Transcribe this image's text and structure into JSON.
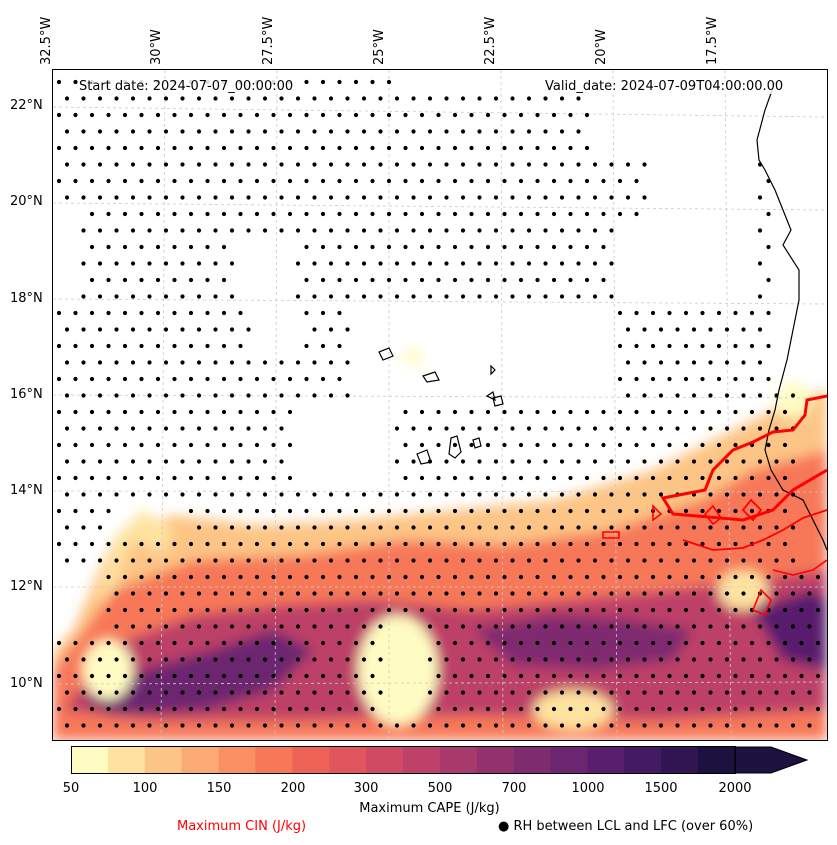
{
  "map": {
    "start_date": "Start date: 2024-07-07_00:00:00",
    "valid_date": "Valid_date: 2024-07-09T04:00:00.00",
    "longitude_labels": [
      "32.5°W",
      "30°W",
      "27.5°W",
      "25°W",
      "22.5°W",
      "20°W",
      "17.5°W"
    ],
    "latitude_labels": [
      "22°N",
      "20°N",
      "18°N",
      "16°N",
      "14°N",
      "12°N",
      "10°N"
    ]
  },
  "colorbar": {
    "title": "Maximum CAPE (J/kg)",
    "tick_labels": [
      "50",
      "100",
      "150",
      "200",
      "300",
      "500",
      "700",
      "1000",
      "1500",
      "2000"
    ],
    "colors": [
      "#fffcc3",
      "#fee3a0",
      "#fdc585",
      "#fcaa73",
      "#fa9063",
      "#f77858",
      "#ef6356",
      "#e1555c",
      "#d04a63",
      "#bd4168",
      "#a83a6c",
      "#93336e",
      "#7f2c6f",
      "#6c256f",
      "#581e6d",
      "#451a64",
      "#301552",
      "#1d1140"
    ]
  },
  "legend": {
    "cin_label": "Maximum CIN (J/kg)",
    "rh_label": "● RH between LCL and LFC (over 60%)",
    "cin_color": "#ff0000"
  }
}
